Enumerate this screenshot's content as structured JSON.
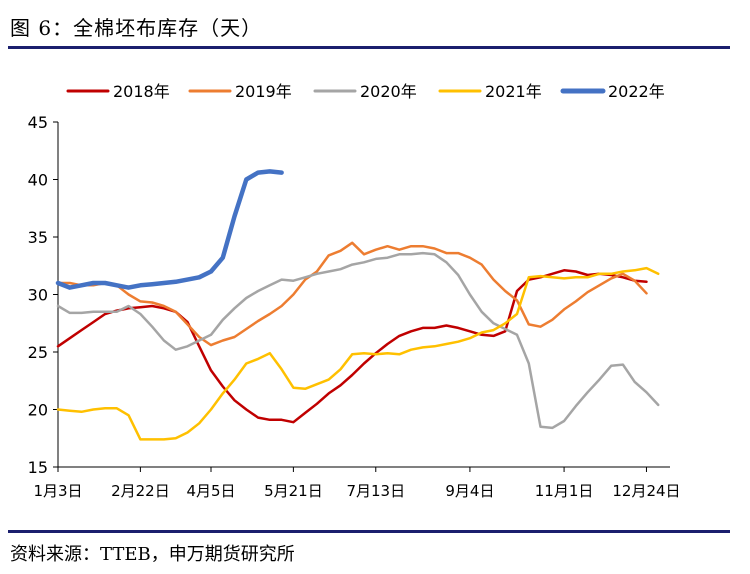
{
  "header": {
    "title": "图 6：全棉坯布库存（天）"
  },
  "footer": {
    "source": "资料来源：TTEB，申万期货研究所"
  },
  "chart_data": {
    "type": "line",
    "title": "",
    "xlabel": "",
    "ylabel": "",
    "ylim": [
      15,
      45
    ],
    "yticks": [
      15,
      20,
      25,
      30,
      35,
      40,
      45
    ],
    "x_tick_labels": [
      "1月3日",
      "2月22日",
      "4月5日",
      "5月21日",
      "7月13日",
      "9月4日",
      "11月1日",
      "12月24日"
    ],
    "x_tick_weeks": [
      0,
      7,
      13,
      20,
      27,
      35,
      43,
      50
    ],
    "x_max_week": 52,
    "grid": false,
    "legend_position": "top",
    "series": [
      {
        "name": "2018年",
        "color": "#c00000",
        "weeks_start": 0,
        "values": [
          25.5,
          26.2,
          26.9,
          27.6,
          28.3,
          28.6,
          28.8,
          28.9,
          29.0,
          28.8,
          28.5,
          27.6,
          25.5,
          23.4,
          22.0,
          20.8,
          20.0,
          19.3,
          19.1,
          19.1,
          18.9,
          19.7,
          20.5,
          21.4,
          22.1,
          23.0,
          24.0,
          24.9,
          25.7,
          26.4,
          26.8,
          27.1,
          27.1,
          27.3,
          27.1,
          26.8,
          26.5,
          26.4,
          26.8,
          30.3,
          31.3,
          31.5,
          31.8,
          32.1,
          32.0,
          31.7,
          31.8,
          31.7,
          31.5,
          31.2,
          31.1
        ]
      },
      {
        "name": "2019年",
        "color": "#ed7d31",
        "weeks_start": 0,
        "values": [
          31.0,
          31.0,
          30.8,
          30.8,
          31.0,
          30.8,
          30.0,
          29.4,
          29.3,
          29.0,
          28.5,
          27.4,
          26.3,
          25.6,
          26.0,
          26.3,
          27.0,
          27.7,
          28.3,
          29.0,
          30.0,
          31.3,
          32.0,
          33.4,
          33.8,
          34.5,
          33.5,
          33.9,
          34.2,
          33.9,
          34.2,
          34.2,
          34.0,
          33.6,
          33.6,
          33.2,
          32.6,
          31.3,
          30.3,
          29.5,
          27.4,
          27.2,
          27.8,
          28.7,
          29.4,
          30.2,
          30.8,
          31.4,
          31.8,
          31.2,
          30.1
        ]
      },
      {
        "name": "2020年",
        "color": "#a5a5a5",
        "weeks_start": 0,
        "values": [
          29.0,
          28.4,
          28.4,
          28.5,
          28.5,
          28.5,
          29.0,
          28.3,
          27.2,
          26.0,
          25.2,
          25.5,
          26.0,
          26.5,
          27.8,
          28.8,
          29.7,
          30.3,
          30.8,
          31.3,
          31.2,
          31.5,
          31.8,
          32.0,
          32.2,
          32.6,
          32.8,
          33.1,
          33.2,
          33.5,
          33.5,
          33.6,
          33.5,
          32.8,
          31.7,
          30.0,
          28.5,
          27.5,
          27.0,
          26.5,
          24.0,
          18.5,
          18.4,
          19.0,
          20.3,
          21.5,
          22.6,
          23.8,
          23.9,
          22.4,
          21.5,
          20.4
        ]
      },
      {
        "name": "2021年",
        "color": "#ffc000",
        "weeks_start": 0,
        "values": [
          20.0,
          19.9,
          19.8,
          20.0,
          20.1,
          20.1,
          19.5,
          17.4,
          17.4,
          17.4,
          17.5,
          18.0,
          18.8,
          20.0,
          21.4,
          22.6,
          24.0,
          24.4,
          24.9,
          23.5,
          21.9,
          21.8,
          22.2,
          22.6,
          23.5,
          24.8,
          24.9,
          24.8,
          24.9,
          24.8,
          25.2,
          25.4,
          25.5,
          25.7,
          25.9,
          26.2,
          26.7,
          26.9,
          27.5,
          28.3,
          31.5,
          31.6,
          31.5,
          31.4,
          31.5,
          31.5,
          31.8,
          31.8,
          32.0,
          32.1,
          32.3,
          31.8
        ]
      },
      {
        "name": "2022年",
        "color": "#4472c4",
        "weeks_start": 0,
        "values": [
          31.0,
          30.6,
          30.8,
          31.0,
          31.0,
          30.8,
          30.6,
          30.8,
          30.9,
          31.0,
          31.1,
          31.3,
          31.5,
          32.0,
          33.2,
          36.8,
          40.0,
          40.6,
          40.7,
          40.6
        ]
      }
    ]
  }
}
